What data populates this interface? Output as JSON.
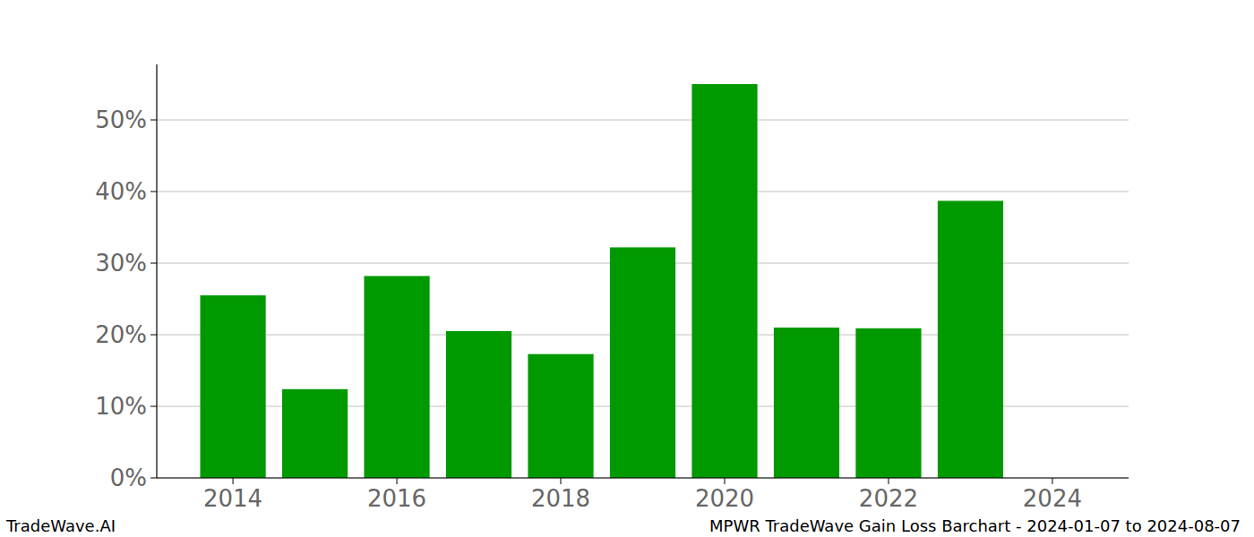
{
  "chart_data": {
    "type": "bar",
    "title": "MPWR TradeWave Gain Loss Barchart - 2024-01-07 to 2024-08-07",
    "annotations": [
      "TradeWave.AI"
    ],
    "x": [
      2014,
      2015,
      2016,
      2017,
      2018,
      2019,
      2020,
      2021,
      2022,
      2023
    ],
    "values": [
      25.5,
      12.4,
      28.2,
      20.5,
      17.3,
      32.2,
      55.0,
      21.0,
      20.9,
      38.7
    ],
    "color": "#009900",
    "xlim": [
      2013.07,
      2024.93
    ],
    "xticks": [
      2014,
      2016,
      2018,
      2020,
      2022,
      2024
    ],
    "ylim": [
      0,
      57.75
    ],
    "yticks": [
      {
        "value": 0,
        "label": "0%"
      },
      {
        "value": 10,
        "label": "10%"
      },
      {
        "value": 20,
        "label": "20%"
      },
      {
        "value": 30,
        "label": "30%"
      },
      {
        "value": 40,
        "label": "40%"
      },
      {
        "value": 50,
        "label": "50%"
      }
    ],
    "grid": true
  }
}
